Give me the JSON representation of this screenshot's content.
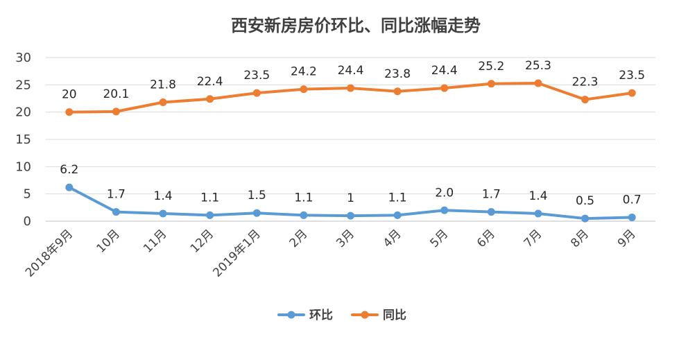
{
  "chart_data": {
    "type": "line",
    "title": "西安新房房价环比、同比涨幅走势",
    "categories": [
      "2018年9月",
      "10月",
      "11月",
      "12月",
      "2019年1月",
      "2月",
      "3月",
      "4月",
      "5月",
      "6月",
      "7月",
      "8月",
      "9月"
    ],
    "series": [
      {
        "name": "环比",
        "color": "#5b9bd5",
        "values": [
          6.2,
          1.7,
          1.4,
          1.1,
          1.5,
          1.1,
          1,
          1.1,
          2.0,
          1.7,
          1.4,
          0.5,
          0.7
        ],
        "labels": [
          "6.2",
          "1.7",
          "1.4",
          "1.1",
          "1.5",
          "1.1",
          "1",
          "1.1",
          "2.0",
          "1.7",
          "1.4",
          "0.5",
          "0.7"
        ]
      },
      {
        "name": "同比",
        "color": "#ed7d31",
        "values": [
          20,
          20.1,
          21.8,
          22.4,
          23.5,
          24.2,
          24.4,
          23.8,
          24.4,
          25.2,
          25.3,
          22.3,
          23.5
        ],
        "labels": [
          "20",
          "20.1",
          "21.8",
          "22.4",
          "23.5",
          "24.2",
          "24.4",
          "23.8",
          "24.4",
          "25.2",
          "25.3",
          "22.3",
          "23.5"
        ]
      }
    ],
    "ylim": [
      0,
      30
    ],
    "yticks": [
      0,
      5,
      10,
      15,
      20,
      25,
      30
    ],
    "grid": true,
    "legend_position": "bottom"
  }
}
